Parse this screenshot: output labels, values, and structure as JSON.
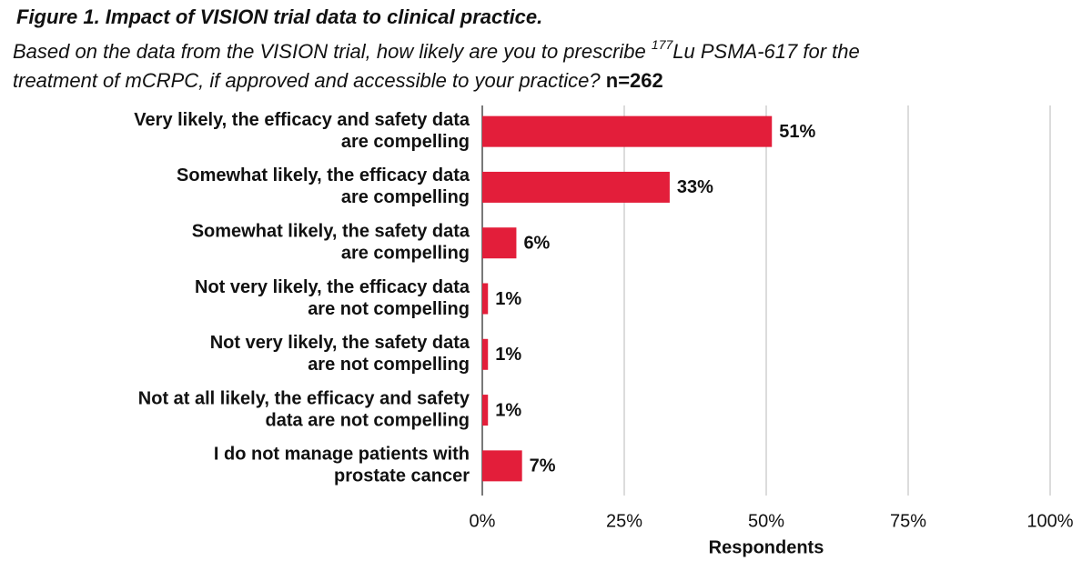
{
  "chart_data": {
    "type": "hbar",
    "title": "Figure 1. Impact of VISION trial data to clinical practice.",
    "subtitle": {
      "before": "Based on the data from the VISION trial, how likely are you to prescribe ",
      "superscript": "177",
      "after_line1": "Lu PSMA-617 for the",
      "after_line2": "treatment of mCRPC, if approved and accessible to your practice?",
      "sample_size": "n=262"
    },
    "categories": [
      [
        "Very likely, the efficacy and safety data",
        "are compelling"
      ],
      [
        "Somewhat likely, the efficacy data",
        "are compelling"
      ],
      [
        "Somewhat likely, the safety data",
        "are compelling"
      ],
      [
        "Not very likely, the efficacy data",
        "are not compelling"
      ],
      [
        "Not very likely, the safety data",
        "are not compelling"
      ],
      [
        "Not at all likely, the efficacy and safety",
        "data are not compelling"
      ],
      [
        "I do not manage patients with",
        "prostate cancer"
      ]
    ],
    "values": [
      51,
      33,
      6,
      1,
      1,
      1,
      7
    ],
    "value_labels": [
      "51%",
      "33%",
      "6%",
      "1%",
      "1%",
      "1%",
      "7%"
    ],
    "color": "#e31e3a",
    "xlim": [
      0,
      100
    ],
    "xticks": [
      {
        "value": 0,
        "label": "0%"
      },
      {
        "value": 25,
        "label": "25%"
      },
      {
        "value": 50,
        "label": "50%"
      },
      {
        "value": 75,
        "label": "75%"
      },
      {
        "value": 100,
        "label": "100%"
      }
    ],
    "xlabel": "Respondents",
    "grid": true
  }
}
